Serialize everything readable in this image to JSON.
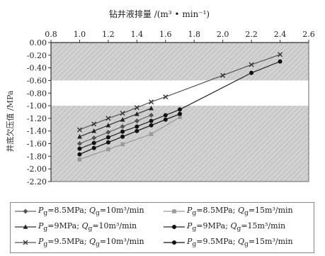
{
  "chart_data": {
    "type": "line",
    "title": "钻井液排量 /(m³ • min⁻¹)",
    "xlabel": "",
    "ylabel": "井底欠压值 /MPa",
    "xlim": [
      0.8,
      2.6
    ],
    "ylim": [
      -2.2,
      0.0
    ],
    "x_ticks": [
      "0.8",
      "1.0",
      "1.2",
      "1.4",
      "1.6",
      "1.8",
      "2.0",
      "2.2",
      "2.4",
      "2.6"
    ],
    "y_ticks": [
      "0.00",
      "-0.20",
      "-0.40",
      "-0.60",
      "-0.80",
      "-1.00",
      "-1.20",
      "-1.40",
      "-1.60",
      "-1.80",
      "-2.00",
      "-2.20"
    ],
    "x_axis_position": "top",
    "grid": false,
    "band": [
      -0.6,
      -1.0
    ],
    "legend_position": "bottom",
    "series": [
      {
        "name": "Pg=8.5MPa; Qg=10m³/min",
        "marker": "diamond",
        "x": [
          1.0,
          1.1,
          1.2,
          1.3,
          1.4,
          1.5
        ],
        "y": [
          -1.6,
          -1.51,
          -1.42,
          -1.33,
          -1.24,
          -1.15
        ]
      },
      {
        "name": "Pg=8.5MPa; Qg=15m³/min",
        "marker": "square",
        "x": [
          1.0,
          1.2,
          1.3,
          1.5,
          1.7
        ],
        "y": [
          -1.85,
          -1.69,
          -1.61,
          -1.45,
          -1.18
        ]
      },
      {
        "name": "Pg=9MPa; Qg=10m³/min",
        "marker": "triangle",
        "x": [
          1.0,
          1.1,
          1.2,
          1.3,
          1.4,
          1.5
        ],
        "y": [
          -1.49,
          -1.4,
          -1.31,
          -1.22,
          -1.13,
          -1.04
        ]
      },
      {
        "name": "Pg=9MPa; Qg=15m³/min",
        "marker": "circle",
        "x": [
          1.0,
          1.1,
          1.2,
          1.3,
          1.4,
          1.5,
          1.6,
          1.7,
          2.2,
          2.4
        ],
        "y": [
          -1.68,
          -1.59,
          -1.5,
          -1.41,
          -1.33,
          -1.24,
          -1.15,
          -1.06,
          -0.48,
          -0.3
        ]
      },
      {
        "name": "Pg=9.5MPa; Qg=10m³/min",
        "marker": "x",
        "x": [
          1.0,
          1.1,
          1.2,
          1.3,
          1.4,
          1.5,
          1.6,
          2.0,
          2.2,
          2.4
        ],
        "y": [
          -1.38,
          -1.29,
          -1.2,
          -1.12,
          -1.03,
          -0.94,
          -0.86,
          -0.52,
          -0.35,
          -0.19
        ]
      },
      {
        "name": "Pg=9.5MPa; Qg=15m³/min",
        "marker": "circle",
        "x": [
          1.0,
          1.1,
          1.2,
          1.3,
          1.4,
          1.5,
          1.6,
          1.7
        ],
        "y": [
          -1.77,
          -1.67,
          -1.58,
          -1.49,
          -1.4,
          -1.31,
          -1.22,
          -1.13
        ]
      }
    ]
  },
  "legend": [
    {
      "p_value": "=8.5MPa; ",
      "q_value": "=10m³/min"
    },
    {
      "p_value": "=8.5MPa; ",
      "q_value": "=15m³/min"
    },
    {
      "p_value": "=9MPa; ",
      "q_value": "=10m³/min"
    },
    {
      "p_value": "=9MPa; ",
      "q_value": "=15m³/min"
    },
    {
      "p_value": "=9.5MPa; ",
      "q_value": "=10m³/min"
    },
    {
      "p_value": "=9.5MPa; ",
      "q_value": "=15m³/min"
    }
  ],
  "legend_symbols": {
    "p": "P",
    "q": "Q",
    "subscript": "g"
  }
}
